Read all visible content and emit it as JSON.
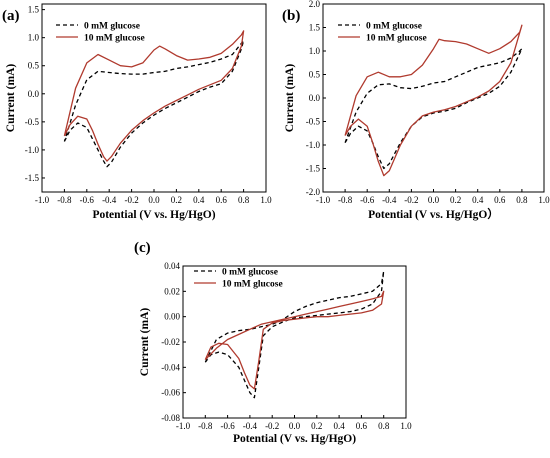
{
  "colors": {
    "series_0": "#000000",
    "series_10": "#b03a2e",
    "axis": "#000000"
  },
  "chart_data": [
    {
      "panel_label": "(a)",
      "type": "line",
      "xlabel": "Potential (V vs. Hg/HgO)",
      "ylabel": "Current (mA)",
      "xlim": [
        -1.0,
        1.0
      ],
      "ylim": [
        -1.75,
        1.6
      ],
      "xticks": [
        "-1.0",
        "-0.8",
        "-0.6",
        "-0.4",
        "-0.2",
        "0.0",
        "0.2",
        "0.4",
        "0.6",
        "0.8",
        "1.0"
      ],
      "yticks": [
        "-1.5",
        "-1.0",
        "-0.5",
        "0.0",
        "0.5",
        "1.0",
        "1.5"
      ],
      "legend": {
        "position": "top-left",
        "entries": [
          "0 mM glucose",
          "10 mM glucose"
        ]
      },
      "series": [
        {
          "name": "0 mM glucose",
          "style": "dashed",
          "x": [
            -0.8,
            -0.75,
            -0.68,
            -0.6,
            -0.55,
            -0.5,
            -0.45,
            -0.42,
            -0.38,
            -0.3,
            -0.2,
            -0.1,
            0.0,
            0.1,
            0.2,
            0.3,
            0.4,
            0.5,
            0.6,
            0.7,
            0.78,
            0.8,
            0.78,
            0.7,
            0.6,
            0.5,
            0.4,
            0.3,
            0.2,
            0.1,
            0.0,
            -0.1,
            -0.2,
            -0.3,
            -0.4,
            -0.5,
            -0.6,
            -0.7,
            -0.8
          ],
          "y": [
            -0.85,
            -0.65,
            -0.52,
            -0.6,
            -0.8,
            -1.0,
            -1.2,
            -1.3,
            -1.22,
            -0.95,
            -0.7,
            -0.52,
            -0.38,
            -0.26,
            -0.16,
            -0.06,
            0.04,
            0.12,
            0.18,
            0.4,
            0.8,
            0.95,
            0.9,
            0.7,
            0.62,
            0.56,
            0.52,
            0.48,
            0.45,
            0.4,
            0.38,
            0.35,
            0.35,
            0.36,
            0.38,
            0.4,
            0.25,
            -0.2,
            -0.85
          ]
        },
        {
          "name": "10 mM glucose",
          "style": "solid",
          "x": [
            -0.8,
            -0.75,
            -0.68,
            -0.6,
            -0.55,
            -0.5,
            -0.45,
            -0.42,
            -0.38,
            -0.3,
            -0.2,
            -0.1,
            0.0,
            0.1,
            0.2,
            0.3,
            0.4,
            0.5,
            0.6,
            0.7,
            0.78,
            0.8,
            0.78,
            0.7,
            0.6,
            0.5,
            0.4,
            0.3,
            0.2,
            0.1,
            0.05,
            0.0,
            -0.1,
            -0.2,
            -0.3,
            -0.4,
            -0.5,
            -0.6,
            -0.7,
            -0.8
          ],
          "y": [
            -0.75,
            -0.55,
            -0.4,
            -0.45,
            -0.65,
            -0.9,
            -1.12,
            -1.2,
            -1.12,
            -0.88,
            -0.65,
            -0.48,
            -0.34,
            -0.22,
            -0.12,
            -0.02,
            0.08,
            0.16,
            0.24,
            0.45,
            0.85,
            1.12,
            1.05,
            0.88,
            0.72,
            0.65,
            0.62,
            0.6,
            0.68,
            0.8,
            0.85,
            0.78,
            0.55,
            0.48,
            0.5,
            0.6,
            0.7,
            0.55,
            0.1,
            -0.75
          ]
        }
      ]
    },
    {
      "panel_label": "(b)",
      "type": "line",
      "xlabel": "Potential (V vs. Hg/HgO）",
      "ylabel": "Current (mA)",
      "xlim": [
        -1.0,
        1.0
      ],
      "ylim": [
        -2.0,
        2.0
      ],
      "xticks": [
        "-1.0",
        "-0.8",
        "-0.6",
        "-0.4",
        "-0.2",
        "0.0",
        "0.2",
        "0.4",
        "0.6",
        "0.8",
        "1.0"
      ],
      "yticks": [
        "-2.0",
        "-1.5",
        "-1.0",
        "-0.5",
        "0.0",
        "0.5",
        "1.0",
        "1.5",
        "2.0"
      ],
      "legend": {
        "position": "top-left",
        "entries": [
          "0 mM glucose",
          "10 mM glucose"
        ]
      },
      "series": [
        {
          "name": "0 mM glucose",
          "style": "dashed",
          "x": [
            -0.8,
            -0.75,
            -0.68,
            -0.6,
            -0.55,
            -0.5,
            -0.45,
            -0.4,
            -0.3,
            -0.2,
            -0.1,
            0.0,
            0.1,
            0.2,
            0.3,
            0.4,
            0.5,
            0.6,
            0.7,
            0.8,
            0.78,
            0.7,
            0.6,
            0.5,
            0.4,
            0.3,
            0.2,
            0.1,
            0.0,
            -0.1,
            -0.2,
            -0.3,
            -0.4,
            -0.5,
            -0.6,
            -0.7,
            -0.8
          ],
          "y": [
            -0.95,
            -0.75,
            -0.6,
            -0.7,
            -0.95,
            -1.25,
            -1.5,
            -1.4,
            -0.95,
            -0.6,
            -0.4,
            -0.32,
            -0.28,
            -0.22,
            -0.1,
            0.0,
            0.1,
            0.25,
            0.55,
            1.05,
            1.0,
            0.85,
            0.75,
            0.7,
            0.65,
            0.55,
            0.45,
            0.35,
            0.32,
            0.25,
            0.2,
            0.22,
            0.3,
            0.28,
            0.1,
            -0.3,
            -0.95
          ]
        },
        {
          "name": "10 mM glucose",
          "style": "solid",
          "x": [
            -0.8,
            -0.75,
            -0.68,
            -0.6,
            -0.55,
            -0.5,
            -0.45,
            -0.4,
            -0.3,
            -0.2,
            -0.1,
            0.0,
            0.1,
            0.2,
            0.3,
            0.4,
            0.5,
            0.6,
            0.7,
            0.8,
            0.78,
            0.7,
            0.6,
            0.5,
            0.4,
            0.3,
            0.2,
            0.1,
            0.05,
            0.0,
            -0.1,
            -0.2,
            -0.3,
            -0.4,
            -0.5,
            -0.6,
            -0.7,
            -0.8
          ],
          "y": [
            -0.8,
            -0.6,
            -0.45,
            -0.6,
            -0.95,
            -1.35,
            -1.65,
            -1.55,
            -1.0,
            -0.6,
            -0.38,
            -0.3,
            -0.25,
            -0.18,
            -0.08,
            0.02,
            0.15,
            0.35,
            0.75,
            1.55,
            1.4,
            1.2,
            1.05,
            0.95,
            1.05,
            1.15,
            1.2,
            1.22,
            1.25,
            1.05,
            0.7,
            0.5,
            0.45,
            0.45,
            0.55,
            0.45,
            0.05,
            -0.8
          ]
        }
      ]
    },
    {
      "panel_label": "(c)",
      "type": "line",
      "xlabel": "Potential (V vs. Hg/HgO)",
      "ylabel": "Current (mA)",
      "xlim": [
        -1.0,
        1.0
      ],
      "ylim": [
        -0.08,
        0.04
      ],
      "xticks": [
        "-1.0",
        "-0.8",
        "-0.6",
        "-0.4",
        "-0.2",
        "0.0",
        "0.2",
        "0.4",
        "0.6",
        "0.8",
        "1.0"
      ],
      "yticks": [
        "-0.08",
        "-0.06",
        "-0.04",
        "-0.02",
        "0.00",
        "0.02",
        "0.04"
      ],
      "legend": {
        "position": "top-left",
        "entries": [
          "0 mM glucose",
          "10 mM glucose"
        ]
      },
      "series": [
        {
          "name": "0 mM glucose",
          "style": "dashed",
          "x": [
            -0.8,
            -0.75,
            -0.68,
            -0.6,
            -0.5,
            -0.45,
            -0.4,
            -0.36,
            -0.32,
            -0.28,
            -0.2,
            -0.1,
            0.0,
            0.1,
            0.2,
            0.3,
            0.4,
            0.5,
            0.6,
            0.7,
            0.78,
            0.8,
            0.78,
            0.7,
            0.6,
            0.5,
            0.4,
            0.3,
            0.2,
            0.1,
            0.0,
            -0.1,
            -0.2,
            -0.3,
            -0.4,
            -0.5,
            -0.6,
            -0.7,
            -0.8
          ],
          "y": [
            -0.036,
            -0.03,
            -0.028,
            -0.03,
            -0.04,
            -0.05,
            -0.06,
            -0.064,
            -0.04,
            -0.015,
            -0.008,
            -0.004,
            -0.001,
            0.0,
            0.001,
            0.002,
            0.003,
            0.004,
            0.006,
            0.01,
            0.02,
            0.036,
            0.026,
            0.02,
            0.018,
            0.016,
            0.015,
            0.013,
            0.011,
            0.008,
            0.004,
            -0.002,
            -0.006,
            -0.008,
            -0.01,
            -0.011,
            -0.013,
            -0.018,
            -0.036
          ]
        },
        {
          "name": "10 mM glucose",
          "style": "solid",
          "x": [
            -0.8,
            -0.75,
            -0.68,
            -0.6,
            -0.5,
            -0.45,
            -0.4,
            -0.36,
            -0.32,
            -0.28,
            -0.2,
            -0.1,
            0.0,
            0.1,
            0.2,
            0.3,
            0.4,
            0.5,
            0.6,
            0.7,
            0.78,
            0.8,
            0.78,
            0.7,
            0.6,
            0.5,
            0.4,
            0.3,
            0.2,
            0.1,
            0.0,
            -0.1,
            -0.2,
            -0.3,
            -0.4,
            -0.5,
            -0.6,
            -0.7,
            -0.8
          ],
          "y": [
            -0.034,
            -0.024,
            -0.021,
            -0.022,
            -0.033,
            -0.044,
            -0.054,
            -0.057,
            -0.035,
            -0.01,
            -0.005,
            -0.003,
            -0.002,
            -0.001,
            0.0,
            0.0,
            0.001,
            0.002,
            0.003,
            0.005,
            0.01,
            0.02,
            0.016,
            0.014,
            0.012,
            0.01,
            0.008,
            0.006,
            0.004,
            0.002,
            0.0,
            -0.002,
            -0.004,
            -0.006,
            -0.01,
            -0.014,
            -0.018,
            -0.025,
            -0.034
          ]
        }
      ]
    }
  ]
}
